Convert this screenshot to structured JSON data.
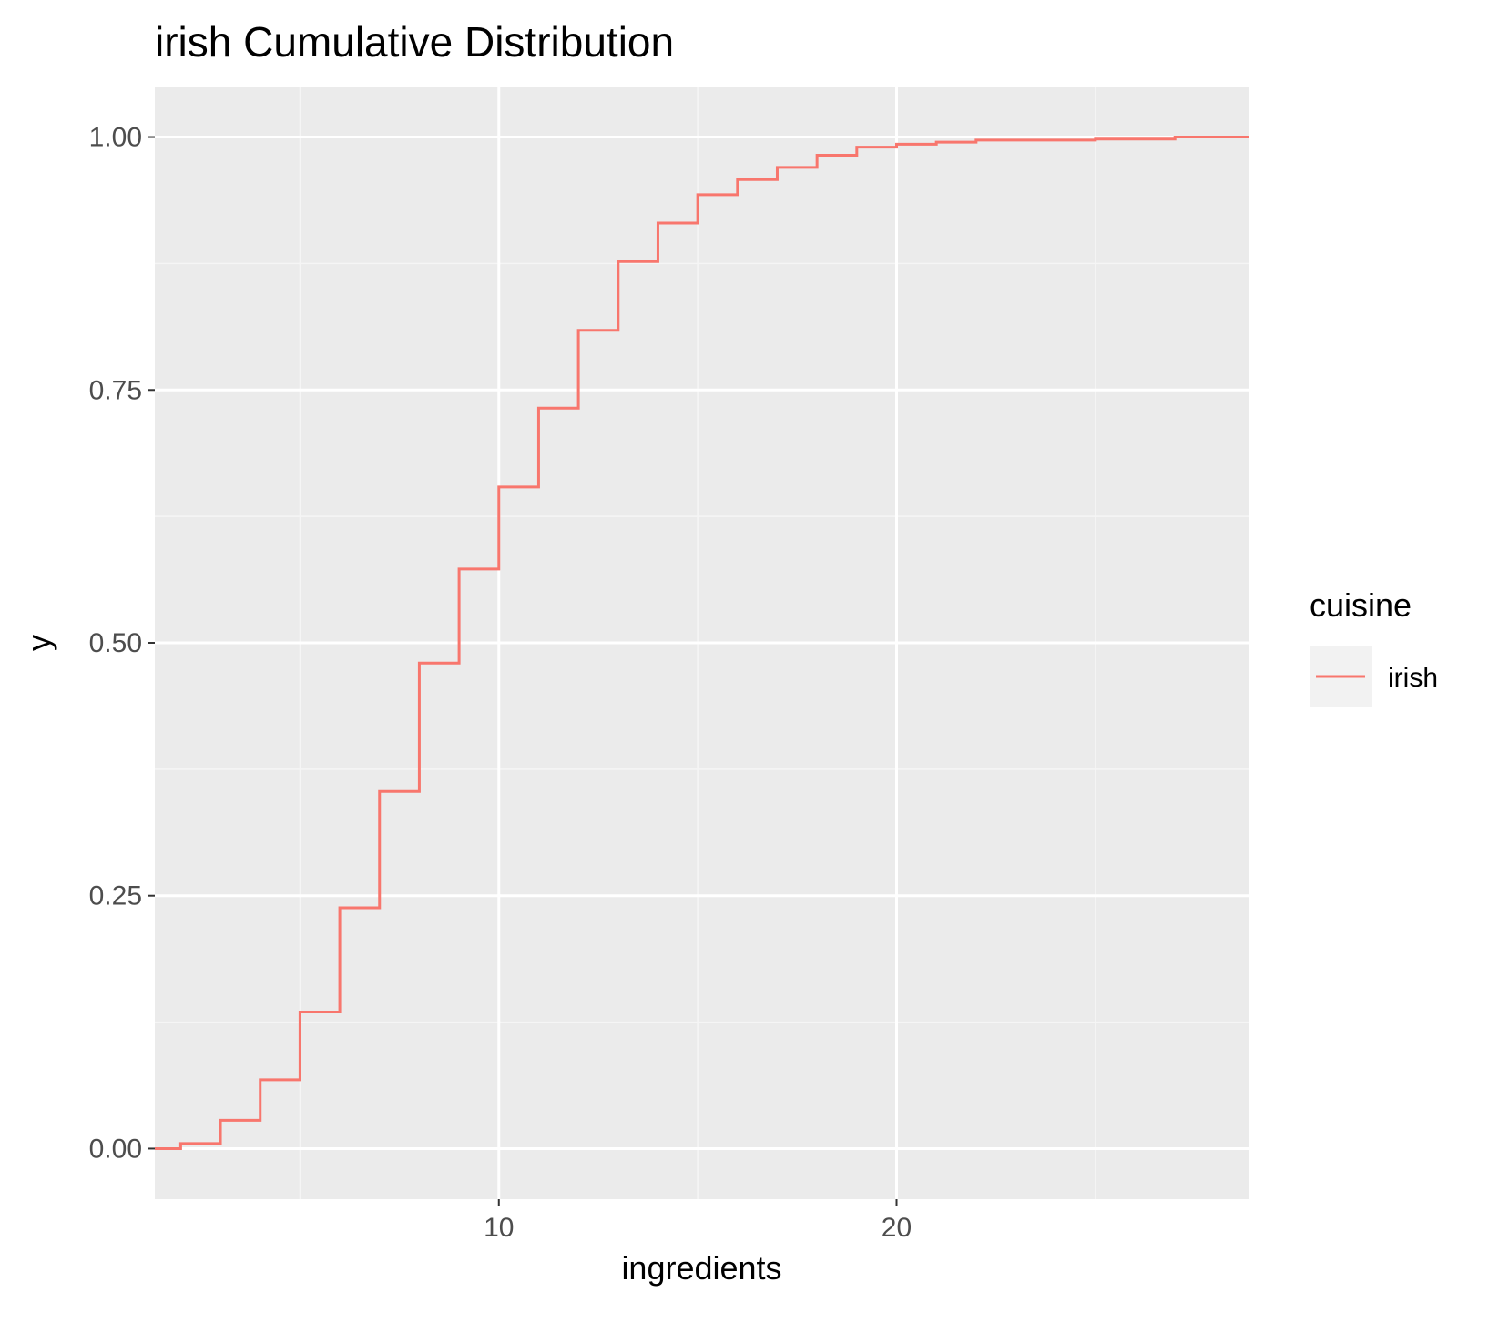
{
  "chart_data": {
    "type": "line",
    "step": true,
    "title": "irish Cumulative Distribution",
    "xlabel": "ingredients",
    "ylabel": "y",
    "xlim": [
      1.35,
      28.85
    ],
    "ylim": [
      -0.05,
      1.05
    ],
    "x_ticks": [
      10,
      20
    ],
    "x_tick_labels": [
      "10",
      "20"
    ],
    "x_minor_ticks": [
      5,
      15,
      25
    ],
    "y_ticks": [
      0,
      0.25,
      0.5,
      0.75,
      1.0
    ],
    "y_tick_labels": [
      "0.00",
      "0.25",
      "0.50",
      "0.75",
      "1.00"
    ],
    "y_minor_ticks": [
      0.125,
      0.375,
      0.625,
      0.875
    ],
    "grid": true,
    "legend": {
      "title": "cuisine",
      "position": "right",
      "entries": [
        "irish"
      ]
    },
    "series": [
      {
        "name": "irish",
        "color": "#F8766D",
        "x": [
          1.35,
          2,
          3,
          4,
          5,
          6,
          7,
          8,
          9,
          10,
          11,
          12,
          13,
          14,
          15,
          16,
          17,
          18,
          19,
          20,
          21,
          22,
          25,
          27,
          28.85
        ],
        "y": [
          0.0,
          0.005,
          0.028,
          0.068,
          0.135,
          0.238,
          0.353,
          0.48,
          0.573,
          0.654,
          0.732,
          0.809,
          0.877,
          0.915,
          0.943,
          0.958,
          0.97,
          0.982,
          0.99,
          0.993,
          0.995,
          0.997,
          0.998,
          1.0,
          1.0
        ]
      }
    ],
    "colors": {
      "panel_background": "#EBEBEB",
      "grid_major": "#FFFFFF",
      "grid_minor": "#F5F5F5",
      "tick_text": "#4D4D4D",
      "tick_mark": "#333333",
      "legend_key_background": "#F2F2F2"
    }
  }
}
